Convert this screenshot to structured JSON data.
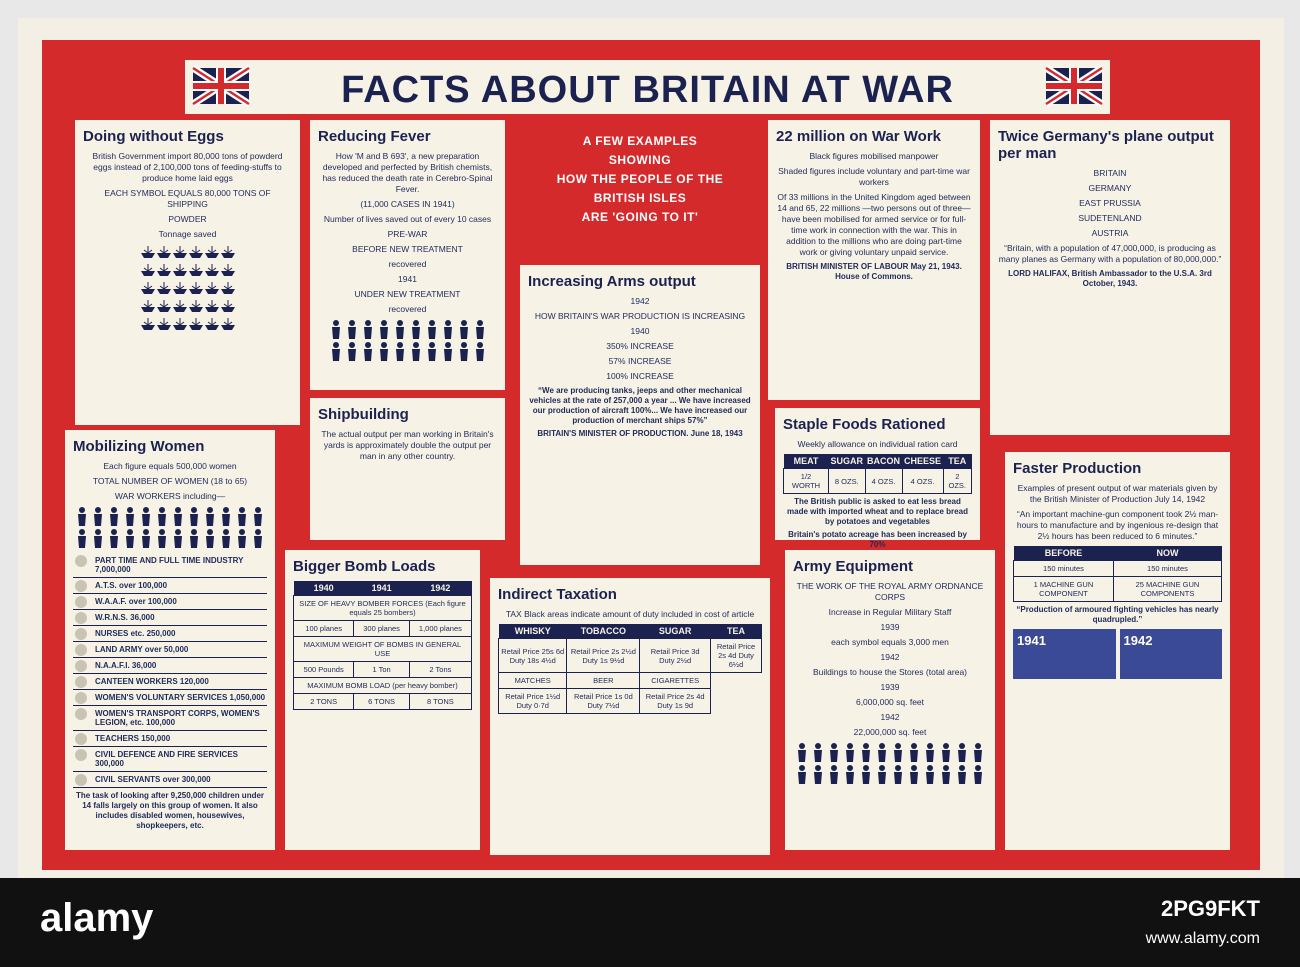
{
  "header": {
    "title": "FACTS ABOUT BRITAIN AT WAR"
  },
  "intro": [
    "A FEW EXAMPLES",
    "SHOWING",
    "HOW THE PEOPLE OF THE",
    "BRITISH ISLES",
    "ARE 'GOING TO IT'"
  ],
  "panels": {
    "eggs": {
      "title": "Doing without Eggs",
      "lines": [
        "British Government import 80,000 tons of powderd eggs instead of 2,100,000 tons of feeding-stuffs to produce home laid eggs",
        "EACH SYMBOL EQUALS 80,000 TONS OF SHIPPING",
        "POWDER",
        "Tonnage saved"
      ]
    },
    "fever": {
      "title": "Reducing Fever",
      "lines": [
        "How 'M and B 693', a new preparation developed and perfected by British chemists, has reduced the death rate in Cerebro-Spinal Fever.",
        "(11,000 CASES IN 1941)",
        "Number of lives saved out of every 10 cases",
        "PRE-WAR",
        "BEFORE NEW TREATMENT",
        "recovered",
        "1941",
        "UNDER NEW TREATMENT",
        "recovered"
      ]
    },
    "arms": {
      "title": "Increasing Arms output",
      "lines": [
        "1942",
        "HOW BRITAIN'S WAR PRODUCTION IS INCREASING",
        "1940",
        "350% INCREASE",
        "57% INCREASE",
        "100% INCREASE"
      ],
      "notes": [
        "“We are producing tanks, jeeps and other mechanical vehicles at the rate of 257,000 a year ... We have increased our production of aircraft 100%... We have increased our production of merchant ships 57%”",
        "BRITAIN'S MINISTER OF PRODUCTION. June 18, 1943"
      ]
    },
    "warwork": {
      "title": "22 million on War Work",
      "lines": [
        "Black figures mobilised manpower",
        "Shaded figures include voluntary and part-time war workers",
        "Of 33 millions in the United Kingdom aged between 14 and 65, 22 millions —two persons out of three— have been mobilised for armed service or for full-time work in connection with the war. This in addition to the millions who are doing part-time work or giving voluntary unpaid service."
      ],
      "notes": [
        "BRITISH MINISTER OF LABOUR May 21, 1943. House of Commons."
      ]
    },
    "germany": {
      "title": "Twice Germany's plane output per man",
      "lines": [
        "BRITAIN",
        "GERMANY",
        "EAST PRUSSIA",
        "SUDETENLAND",
        "AUSTRIA",
        "“Britain, with a population of 47,000,000, is producing as many planes as Germany with a population of 80,000,000.”"
      ],
      "notes": [
        "LORD HALIFAX, British Ambassador to the U.S.A. 3rd October, 1943."
      ]
    },
    "women": {
      "title": "Mobilizing Women",
      "lines": [
        "Each figure equals 500,000 women",
        "TOTAL NUMBER OF WOMEN (18 to 65)",
        "WAR WORKERS including—"
      ],
      "items": [
        "PART TIME AND FULL TIME INDUSTRY 7,000,000",
        "A.T.S. over 100,000",
        "W.A.A.F. over 100,000",
        "W.R.N.S. 36,000",
        "NURSES etc. 250,000",
        "LAND ARMY over 50,000",
        "N.A.A.F.I. 36,000",
        "CANTEEN WORKERS 120,000",
        "WOMEN'S VOLUNTARY SERVICES 1,050,000",
        "WOMEN'S TRANSPORT CORPS, WOMEN'S LEGION, etc. 100,000",
        "TEACHERS 150,000",
        "CIVIL DEFENCE AND FIRE SERVICES 300,000",
        "CIVIL SERVANTS over 300,000"
      ],
      "notes": [
        "The task of looking after 9,250,000 children under 14 falls largely on this group of women. It also includes disabled women, housewives, shopkeepers, etc."
      ]
    },
    "shipbuilding": {
      "title": "Shipbuilding",
      "lines": [
        "The actual output per man working in Britain's yards is approximately double the output per man in any other country."
      ]
    },
    "foods": {
      "title": "Staple Foods Rationed",
      "lines": [
        "Weekly allowance on individual ration card"
      ],
      "table": {
        "headers": [
          "MEAT",
          "SUGAR",
          "BACON",
          "CHEESE",
          "TEA"
        ],
        "rows": [
          [
            "1/2 WORTH",
            "8 OZS.",
            "4 OZS.",
            "4 OZS.",
            "2 OZS."
          ]
        ]
      },
      "notes": [
        "The British public is asked to eat less bread made with imported wheat and to replace bread by potatoes and vegetables",
        "Britain's potato acreage has been increased by 70%"
      ]
    },
    "faster": {
      "title": "Faster Production",
      "lines": [
        "Examples of present output of war materials given by the British Minister of Production July 14, 1942",
        "“An important machine-gun component took 2½ man-hours to manufacture and by ingenious re-design that 2½ hours has been reduced to 6 minutes.”"
      ],
      "table": {
        "headers": [
          "BEFORE",
          "NOW"
        ],
        "rows": [
          [
            "150 minutes",
            "150 minutes"
          ],
          [
            "1 MACHINE GUN COMPONENT",
            "25 MACHINE GUN COMPONENTS"
          ]
        ]
      },
      "notes": [
        "“Production of armoured fighting vehicles has nearly quadrupled.”"
      ],
      "years": [
        "1941",
        "1942"
      ]
    },
    "bombs": {
      "title": "Bigger Bomb Loads",
      "table": {
        "headers": [
          "1940",
          "1941",
          "1942"
        ],
        "rows": [
          [
            "SIZE OF HEAVY BOMBER FORCES (Each figure equals 25 bombers)"
          ],
          [
            "100 planes",
            "300 planes",
            "1,000 planes"
          ],
          [
            "MAXIMUM WEIGHT OF BOMBS IN GENERAL USE"
          ],
          [
            "500 Pounds",
            "1 Ton",
            "2 Tons"
          ],
          [
            "MAXIMUM BOMB LOAD (per heavy bomber)"
          ],
          [
            "2 TONS",
            "6 TONS",
            "8 TONS"
          ]
        ]
      }
    },
    "taxation": {
      "title": "Indirect Taxation",
      "lines": [
        "TAX Black areas indicate amount of duty included in cost of article"
      ],
      "table": {
        "headers": [
          "WHISKY",
          "TOBACCO",
          "SUGAR",
          "TEA"
        ],
        "rows": [
          [
            "Retail Price 25s 6d Duty 18s 4½d",
            "Retail Price 2s 2½d Duty 1s 9½d",
            "Retail Price 3d Duty 2½d",
            "Retail Price 2s 4d Duty 6½d"
          ],
          [
            "MATCHES",
            "BEER",
            "CIGARETTES"
          ],
          [
            "Retail Price 1½d Duty 0·7d",
            "Retail Price 1s 0d Duty 7½d",
            "Retail Price 2s 4d Duty 1s 9d"
          ]
        ]
      }
    },
    "army": {
      "title": "Army Equipment",
      "lines": [
        "THE WORK OF THE ROYAL ARMY ORDNANCE CORPS",
        "Increase in Regular Military Staff",
        "1939",
        "each symbol equals 3,000 men",
        "1942",
        "Buildings to house the Stores (total area)",
        "1939",
        "6,000,000 sq. feet",
        "1942",
        "22,000,000 sq. feet"
      ]
    }
  },
  "watermark": {
    "brand": "alamy",
    "image_id": "2PG9FKT",
    "url": "www.alamy.com"
  }
}
